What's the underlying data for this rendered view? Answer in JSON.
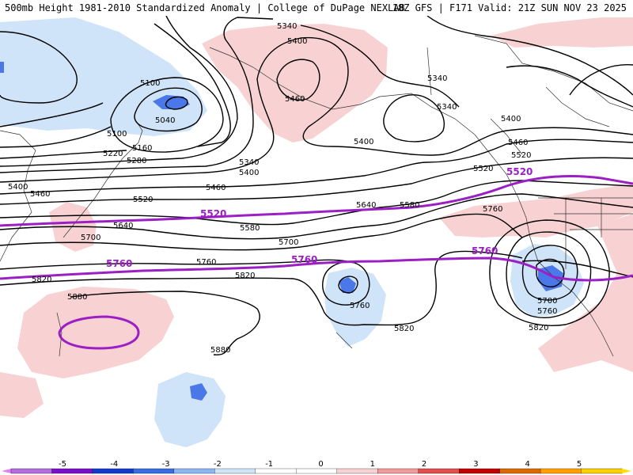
{
  "header": {
    "left": "500mb Height 1981-2010 Standardized Anomaly | College of DuPage NEXLAB",
    "right": "18Z GFS | F171 Valid: 21Z SUN NOV 23 2025"
  },
  "colors": {
    "contour": "#000000",
    "highlight_contour": "#9b1fc4",
    "neg1": "#cfe4f8",
    "neg2": "#4a78e8",
    "pos1": "#f8d2d2",
    "coast": "#333333"
  },
  "contour_labels": {
    "l5340a": "5340",
    "l5400a": "5400",
    "l5100": "5100",
    "l5040": "5040",
    "l5460a": "5460",
    "l5100b": "5100",
    "l5160": "5160",
    "l5220": "5220",
    "l5280": "5280",
    "l5340b": "5340",
    "l5400b": "5400",
    "l5460b": "5460",
    "l5400c": "5400",
    "l5460c": "5460",
    "l5520a": "5520",
    "l5340c": "5340",
    "l5340d": "5340",
    "l5400d": "5400",
    "l5400e": "5400",
    "l5460d": "5460",
    "l5520b": "5520",
    "l5580a": "5580",
    "l5640a": "5640",
    "l5580b": "5580",
    "l5640b": "5640",
    "l5700a": "5700",
    "l5700b": "5700",
    "l5760a": "5760",
    "l5820a": "5820",
    "l5820b": "5820",
    "l5880a": "5880",
    "l5880b": "5880",
    "l5760b": "5760",
    "l5820c": "5820",
    "l5760c": "5760",
    "l5700c": "5700",
    "l5760d": "5760",
    "l5820d": "5820",
    "l5520c": "5520"
  },
  "highlight_labels": {
    "h5520a": "5520",
    "h5520b": "5520",
    "h5760a": "5760",
    "h5760b": "5760",
    "h5760c": "5760"
  },
  "colorbar": {
    "labels": [
      "-5",
      "-4",
      "-3",
      "-2",
      "-1",
      "0",
      "1",
      "2",
      "3",
      "4",
      "5"
    ],
    "colors": [
      "#b46ce0",
      "#7a10c8",
      "#123cc8",
      "#3a6ee0",
      "#8bb6f2",
      "#cfe4f8",
      "#ffffff",
      "#ffffff",
      "#f8d2d2",
      "#f29a9a",
      "#e05050",
      "#c00000",
      "#d96a00",
      "#ffa000",
      "#ffd000"
    ]
  }
}
